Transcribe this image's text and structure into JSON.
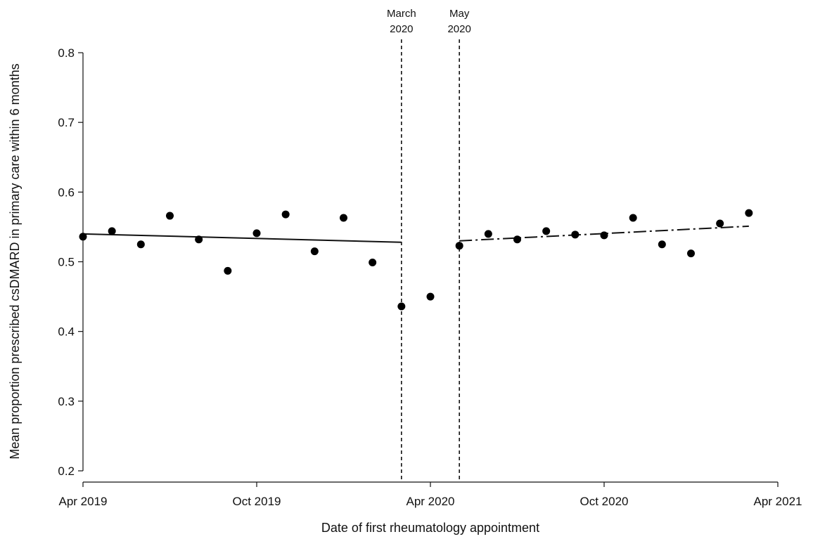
{
  "chart_data": {
    "type": "scatter",
    "xlabel": "Date of first rheumatology appointment",
    "ylabel": "Mean proportion prescribed csDMARD in primary care within 6 months",
    "ylim": [
      0.2,
      0.8
    ],
    "yticks": [
      0.2,
      0.3,
      0.4,
      0.5,
      0.6,
      0.7,
      0.8
    ],
    "xlim": [
      "2019-04",
      "2021-04"
    ],
    "xticks": [
      {
        "value": "2019-04",
        "label": "Apr 2019"
      },
      {
        "value": "2019-10",
        "label": "Oct 2019"
      },
      {
        "value": "2020-04",
        "label": "Apr 2020"
      },
      {
        "value": "2020-10",
        "label": "Oct 2020"
      },
      {
        "value": "2021-04",
        "label": "Apr 2021"
      }
    ],
    "points": [
      {
        "x": "2019-04",
        "y": 0.536
      },
      {
        "x": "2019-05",
        "y": 0.544
      },
      {
        "x": "2019-06",
        "y": 0.525
      },
      {
        "x": "2019-07",
        "y": 0.566
      },
      {
        "x": "2019-08",
        "y": 0.532
      },
      {
        "x": "2019-09",
        "y": 0.487
      },
      {
        "x": "2019-10",
        "y": 0.541
      },
      {
        "x": "2019-11",
        "y": 0.568
      },
      {
        "x": "2019-12",
        "y": 0.515
      },
      {
        "x": "2020-01",
        "y": 0.563
      },
      {
        "x": "2020-02",
        "y": 0.499
      },
      {
        "x": "2020-03",
        "y": 0.436
      },
      {
        "x": "2020-04",
        "y": 0.45
      },
      {
        "x": "2020-05",
        "y": 0.523
      },
      {
        "x": "2020-06",
        "y": 0.54
      },
      {
        "x": "2020-07",
        "y": 0.532
      },
      {
        "x": "2020-08",
        "y": 0.544
      },
      {
        "x": "2020-09",
        "y": 0.539
      },
      {
        "x": "2020-10",
        "y": 0.538
      },
      {
        "x": "2020-11",
        "y": 0.563
      },
      {
        "x": "2020-12",
        "y": 0.525
      },
      {
        "x": "2021-01",
        "y": 0.512
      },
      {
        "x": "2021-02",
        "y": 0.555
      },
      {
        "x": "2021-03",
        "y": 0.57
      }
    ],
    "trend_lines": [
      {
        "style": "solid",
        "from": {
          "x": "2019-04",
          "y": 0.54
        },
        "to": {
          "x": "2020-03",
          "y": 0.528
        }
      },
      {
        "style": "dash-dot",
        "from": {
          "x": "2020-05",
          "y": 0.53
        },
        "to": {
          "x": "2021-03",
          "y": 0.551
        }
      }
    ],
    "vlines": [
      {
        "x": "2020-03",
        "label_lines": [
          "March",
          "2020"
        ]
      },
      {
        "x": "2020-05",
        "label_lines": [
          "May",
          "2020"
        ]
      }
    ],
    "grid": false,
    "legend": "none"
  }
}
